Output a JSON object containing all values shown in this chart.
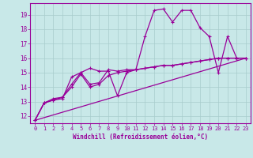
{
  "xlabel": "Windchill (Refroidissement éolien,°C)",
  "xlim": [
    -0.5,
    23.5
  ],
  "ylim": [
    11.5,
    19.8
  ],
  "xticks": [
    0,
    1,
    2,
    3,
    4,
    5,
    6,
    7,
    8,
    9,
    10,
    11,
    12,
    13,
    14,
    15,
    16,
    17,
    18,
    19,
    20,
    21,
    22,
    23
  ],
  "yticks": [
    12,
    13,
    14,
    15,
    16,
    17,
    18,
    19
  ],
  "bg_color": "#c8e8e8",
  "line_color": "#990099",
  "grid_color": "#a8cccc",
  "series1_x": [
    0,
    1,
    2,
    3,
    4,
    5,
    6,
    7,
    8,
    9,
    10,
    11,
    12,
    13,
    14,
    15,
    16,
    17,
    18,
    19,
    20,
    21,
    22,
    23
  ],
  "series1_y": [
    11.7,
    12.9,
    13.1,
    13.2,
    14.7,
    15.0,
    15.3,
    15.1,
    15.1,
    13.4,
    15.0,
    15.2,
    17.5,
    19.3,
    19.4,
    18.5,
    19.3,
    19.3,
    18.1,
    17.5,
    15.0,
    17.5,
    16.0,
    16.0
  ],
  "series2_x": [
    0,
    1,
    2,
    3,
    4,
    5,
    6,
    7,
    8,
    9,
    10,
    11,
    12,
    13,
    14,
    15,
    16,
    17,
    18,
    19,
    20,
    21,
    22,
    23
  ],
  "series2_y": [
    11.7,
    12.9,
    13.2,
    13.3,
    14.2,
    15.0,
    14.2,
    14.3,
    15.2,
    15.1,
    15.2,
    15.2,
    15.3,
    15.4,
    15.5,
    15.5,
    15.6,
    15.7,
    15.8,
    15.9,
    16.0,
    16.0,
    16.0,
    16.0
  ],
  "series3_x": [
    0,
    23
  ],
  "series3_y": [
    11.7,
    16.0
  ],
  "series4_x": [
    0,
    1,
    2,
    3,
    4,
    5,
    6,
    7,
    8,
    9,
    10,
    11,
    12,
    13,
    14,
    15,
    16,
    17,
    18,
    19,
    20,
    21,
    22,
    23
  ],
  "series4_y": [
    11.7,
    12.9,
    13.1,
    13.3,
    14.0,
    14.9,
    14.0,
    14.2,
    14.8,
    15.0,
    15.1,
    15.2,
    15.3,
    15.4,
    15.5,
    15.5,
    15.6,
    15.7,
    15.8,
    15.9,
    16.0,
    16.0,
    16.0,
    16.0
  ]
}
